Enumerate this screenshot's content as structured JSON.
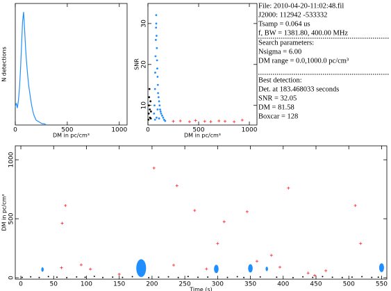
{
  "chart_data": [
    {
      "type": "line",
      "xlabel": "DM in pc/cm³",
      "ylabel": "N detections",
      "xlim": [
        0,
        1075
      ],
      "xticks": [
        0,
        500,
        1000
      ],
      "ylim": [
        0,
        100
      ],
      "x": [
        0,
        10,
        20,
        30,
        40,
        50,
        60,
        70,
        80,
        90,
        100,
        110,
        120,
        130,
        140,
        150,
        160,
        170,
        180,
        190,
        200,
        220,
        240,
        260,
        280,
        300
      ],
      "series": [
        {
          "color": "#1f8fff",
          "values": [
            15,
            18,
            14,
            20,
            30,
            45,
            65,
            85,
            93,
            78,
            62,
            50,
            40,
            32,
            26,
            20,
            15,
            11,
            8,
            6,
            4,
            3,
            2,
            1,
            1,
            0
          ]
        }
      ]
    },
    {
      "type": "scatter",
      "xlabel": "DM in pc/cm³",
      "ylabel": "SNR",
      "xlim": [
        0,
        1075
      ],
      "xticks": [
        0,
        500,
        1000
      ],
      "ylim": [
        5.2,
        34.9
      ],
      "yticks": [
        10,
        20,
        30
      ],
      "series": [
        {
          "color": "#1f8fff",
          "x": [
            60,
            65,
            70,
            72,
            75,
            78,
            80,
            81.58,
            82,
            85,
            88,
            90,
            92,
            95,
            98,
            100,
            105,
            110,
            115,
            120,
            125,
            130,
            140,
            150,
            160,
            170,
            70,
            85,
            95,
            110
          ],
          "values": [
            8,
            10,
            14,
            18,
            22,
            26,
            29,
            32.05,
            30,
            27,
            24,
            21,
            19,
            17,
            15,
            13,
            12,
            11,
            10,
            9,
            8.5,
            8,
            7.5,
            7,
            6.5,
            6.2,
            6.5,
            7,
            9,
            6.8
          ]
        },
        {
          "color": "#000000",
          "x": [
            5,
            8,
            10,
            12,
            15,
            18,
            20,
            25,
            28,
            30
          ],
          "values": [
            6.5,
            8,
            10,
            12,
            14,
            9,
            7,
            11,
            6.8,
            8.5
          ]
        },
        {
          "color": "#ff3030",
          "x": [
            250,
            320,
            410,
            470,
            560,
            620,
            700,
            760,
            850,
            930
          ],
          "values": [
            6.1,
            6.2,
            6.0,
            6.3,
            6.1,
            6.0,
            6.2,
            6.1,
            6.0,
            6.4
          ]
        }
      ]
    },
    {
      "type": "scatter",
      "xlabel": "Time (s)",
      "ylabel": "DM in pc/cm³",
      "xlim": [
        -8.5,
        558
      ],
      "xticks": [
        0,
        50,
        100,
        150,
        200,
        250,
        300,
        350,
        400,
        450,
        500,
        550
      ],
      "ylim": [
        -12,
        1118
      ],
      "yticks": [
        0,
        500,
        1000
      ],
      "series": [
        {
          "color": "#000000",
          "x": [
            2,
            15,
            28,
            42,
            55,
            70,
            85,
            98,
            112,
            125,
            140,
            155,
            170,
            195,
            210,
            225,
            240,
            255,
            270,
            285,
            315,
            330,
            340,
            365,
            390,
            415,
            430,
            445,
            460,
            475,
            490,
            505,
            520,
            535,
            545
          ],
          "values": [
            3,
            8,
            2,
            10,
            5,
            1,
            7,
            4,
            12,
            2,
            6,
            3,
            9,
            1,
            5,
            8,
            2,
            11,
            4,
            6,
            3,
            9,
            2,
            7,
            5,
            1,
            8,
            3,
            10,
            4,
            2,
            6,
            9,
            3,
            5
          ]
        },
        {
          "color": "#1f8fff",
          "x": [
            33,
            183.468033,
            298,
            350,
            375,
            550
          ],
          "values": [
            70,
            81.58,
            75,
            80,
            75,
            85
          ],
          "sizes": [
            8,
            32.05,
            15,
            15,
            8,
            16
          ]
        },
        {
          "color": "#ff3030",
          "x": [
            203,
            238,
            68,
            408,
            510,
            63,
            265,
            345,
            310,
            300,
            518,
            382,
            360,
            92,
            106,
            62,
            233,
            283,
            438,
            465,
            395,
            150,
            448
          ],
          "values": [
            930,
            780,
            612,
            760,
            612,
            462,
            570,
            560,
            475,
            290,
            290,
            190,
            140,
            110,
            73,
            85,
            107,
            75,
            40,
            60,
            90,
            30,
            20
          ]
        }
      ]
    }
  ],
  "info": {
    "lines1": [
      "File: 2010-04-20-11:02:48.fil",
      "J2000: 112942 -533332",
      "Tsamp = 0.064 us",
      "f, BW = 1381.80, 400.00 MHz"
    ],
    "lines2": [
      "Search parameters:",
      "Nsigma = 6.00",
      "DM range = 0.0,1000.0 pc/cm³"
    ],
    "lines3": [
      "Best detection:",
      "Det. at 183.468033 seconds",
      "SNR = 32.05",
      "DM = 81.58",
      "Boxcar = 128"
    ]
  }
}
